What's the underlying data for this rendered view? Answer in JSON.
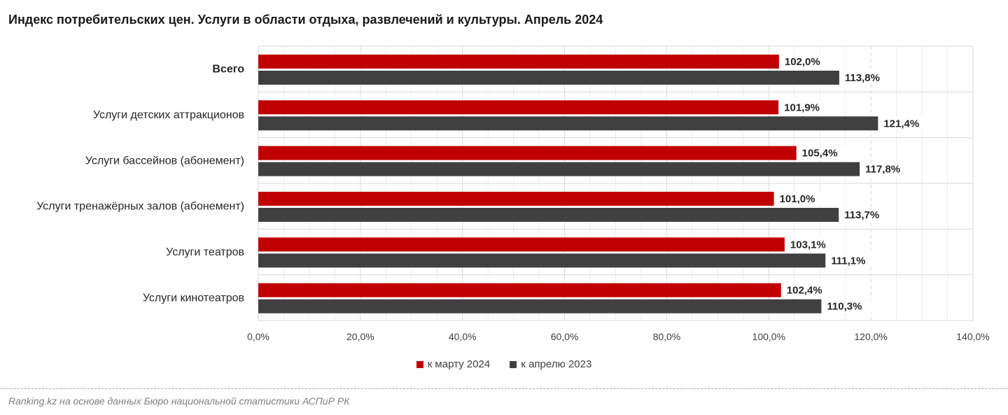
{
  "title": "Индекс потребительских цен. Услуги в области отдыха, развлечений и культуры. Апрель 2024",
  "source": "Ranking.kz на основе данных Бюро национальной статистики АСПиР РК",
  "colors": {
    "series_1": "#c00000",
    "series_2": "#404040"
  },
  "chart_data": {
    "type": "bar",
    "orientation": "horizontal",
    "categories": [
      "Всего",
      "Услуги детских аттракционов",
      "Услуги бассейнов (абонемент)",
      "Услуги тренажёрных залов (абонемент)",
      "Услуги театров",
      "Услуги кинотеатров"
    ],
    "series": [
      {
        "name": "к марту 2024",
        "values": [
          102.0,
          101.9,
          105.4,
          101.0,
          103.1,
          102.4
        ],
        "labels": [
          "102,0%",
          "101,9%",
          "105,4%",
          "101,0%",
          "103,1%",
          "102,4%"
        ]
      },
      {
        "name": "к апрелю 2023",
        "values": [
          113.8,
          121.4,
          117.8,
          113.7,
          111.1,
          110.3
        ],
        "labels": [
          "113,8%",
          "121,4%",
          "117,8%",
          "113,7%",
          "111,1%",
          "110,3%"
        ]
      }
    ],
    "xlim": [
      0,
      140
    ],
    "ticks": [
      "0,0%",
      "20,0%",
      "40,0%",
      "60,0%",
      "80,0%",
      "100,0%",
      "120,0%",
      "140,0%"
    ],
    "tick_values": [
      0,
      20,
      40,
      60,
      80,
      100,
      120,
      140
    ],
    "bold_categories": [
      "Всего"
    ],
    "grid": true,
    "legend_position": "bottom"
  }
}
